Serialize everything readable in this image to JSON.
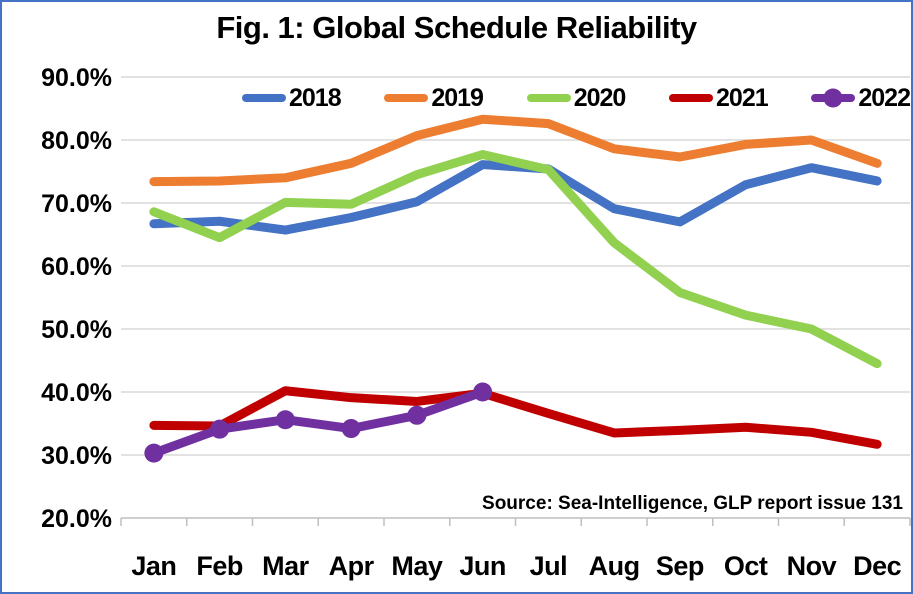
{
  "figure": {
    "title": "Fig. 1: Global Schedule Reliability",
    "source_note": "Source: Sea-Intelligence, GLP report issue 131"
  },
  "colors": {
    "series_2018": "#4472C4",
    "series_2019": "#ED7D31",
    "series_2020": "#92D050",
    "series_2021": "#C00000",
    "series_2022": "#7030A0",
    "gridline": "#D9D9D9",
    "axis": "#BFBFBF",
    "frame_border": "#4472C4",
    "text": "#000000"
  },
  "chart_data": {
    "type": "line",
    "title": "Fig. 1: Global Schedule Reliability",
    "annotation": "Source: Sea-Intelligence, GLP report issue 131",
    "categories": [
      "Jan",
      "Feb",
      "Mar",
      "Apr",
      "May",
      "Jun",
      "Jul",
      "Aug",
      "Sep",
      "Oct",
      "Nov",
      "Dec"
    ],
    "yticks": [
      20,
      30,
      40,
      50,
      60,
      70,
      80,
      90
    ],
    "ytick_labels": [
      "20.0%",
      "30.0%",
      "40.0%",
      "50.0%",
      "60.0%",
      "70.0%",
      "80.0%",
      "90.0%"
    ],
    "ylim": [
      20,
      90
    ],
    "grid": "horizontal",
    "legend_position": "top",
    "series": [
      {
        "name": "2018",
        "color": "#4472C4",
        "marker": "none",
        "values": [
          66.7,
          67.1,
          65.7,
          67.7,
          70.2,
          76.1,
          75.4,
          69.1,
          67.0,
          72.9,
          75.6,
          73.5
        ]
      },
      {
        "name": "2019",
        "color": "#ED7D31",
        "marker": "none",
        "values": [
          73.4,
          73.5,
          74.0,
          76.3,
          80.7,
          83.3,
          82.6,
          78.6,
          77.3,
          79.3,
          80.0,
          76.3
        ]
      },
      {
        "name": "2020",
        "color": "#92D050",
        "marker": "none",
        "values": [
          68.6,
          64.5,
          70.1,
          69.8,
          74.5,
          77.7,
          75.3,
          63.7,
          55.8,
          52.2,
          50.0,
          44.5
        ]
      },
      {
        "name": "2021",
        "color": "#C00000",
        "marker": "none",
        "values": [
          34.7,
          34.6,
          40.2,
          39.1,
          38.5,
          39.8,
          36.6,
          33.5,
          33.9,
          34.4,
          33.6,
          31.7
        ]
      },
      {
        "name": "2022",
        "color": "#7030A0",
        "marker": "circle",
        "values": [
          30.3,
          34.1,
          35.6,
          34.2,
          36.3,
          40.0,
          null,
          null,
          null,
          null,
          null,
          null
        ]
      }
    ]
  }
}
